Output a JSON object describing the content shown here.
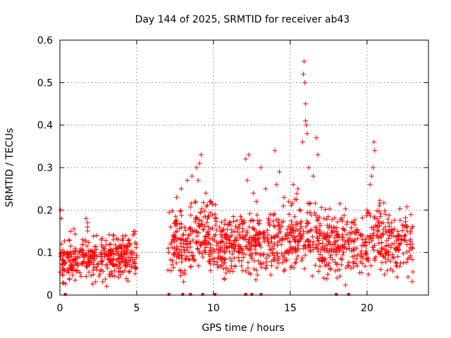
{
  "chart_data": {
    "type": "scatter",
    "title": "Day 144 of 2025, SRMTID for receiver ab43",
    "xlabel": "GPS time / hours",
    "ylabel": "SRMTID / TECUs",
    "xlim": [
      0,
      24
    ],
    "ylim": [
      0,
      0.6
    ],
    "xticks": [
      0,
      5,
      10,
      15,
      20
    ],
    "yticks": [
      0,
      0.1,
      0.2,
      0.3,
      0.4,
      0.5,
      0.6
    ],
    "xtick_labels": [
      "0",
      "5",
      "10",
      "15",
      "20"
    ],
    "ytick_labels": [
      "0",
      "0.1",
      "0.2",
      "0.3",
      "0.4",
      "0.5",
      "0.6"
    ],
    "grid": true,
    "marker": "+",
    "color": "#ff0000",
    "series": [
      {
        "name": "SRMTID",
        "segments": [
          {
            "x_start": 0.0,
            "x_end": 5.0,
            "baseline": 0.085,
            "spread": 0.035
          },
          {
            "x_start": 7.0,
            "x_end": 23.0,
            "baseline": 0.12,
            "spread": 0.045
          }
        ],
        "x": [
          0.05,
          0.1,
          0.1,
          0.6,
          0.7,
          1.0,
          1.3,
          1.7,
          1.8,
          1.8,
          2.2,
          2.4,
          2.9,
          3.3,
          3.5,
          3.8,
          4.1,
          4.3,
          4.5,
          4.8,
          4.9,
          7.2,
          7.5,
          7.6,
          7.9,
          8.3,
          8.6,
          8.9,
          9.0,
          9.1,
          9.2,
          9.5,
          9.8,
          10.1,
          10.4,
          10.7,
          11.0,
          11.3,
          11.8,
          12.1,
          12.2,
          12.3,
          12.6,
          12.8,
          13.1,
          13.4,
          13.7,
          14.0,
          14.1,
          14.3,
          14.6,
          14.9,
          15.2,
          15.5,
          15.8,
          15.85,
          15.9,
          15.95,
          16.0,
          16.0,
          16.05,
          16.1,
          16.2,
          16.5,
          16.7,
          16.8,
          17.2,
          17.6,
          18.0,
          18.4,
          18.8,
          19.2,
          19.6,
          20.0,
          20.2,
          20.3,
          20.4,
          20.45,
          20.5,
          20.8,
          21.2,
          21.6,
          22.0,
          22.4,
          22.8
        ],
        "y": [
          0.2,
          0.18,
          0.12,
          0.13,
          0.15,
          0.11,
          0.09,
          0.18,
          0.17,
          0.16,
          0.1,
          0.14,
          0.09,
          0.12,
          0.14,
          0.13,
          0.08,
          0.1,
          0.13,
          0.15,
          0.15,
          0.12,
          0.17,
          0.23,
          0.25,
          0.27,
          0.28,
          0.3,
          0.27,
          0.31,
          0.33,
          0.24,
          0.22,
          0.18,
          0.16,
          0.14,
          0.13,
          0.12,
          0.11,
          0.32,
          0.27,
          0.33,
          0.24,
          0.22,
          0.3,
          0.25,
          0.19,
          0.34,
          0.26,
          0.29,
          0.23,
          0.22,
          0.26,
          0.25,
          0.36,
          0.52,
          0.55,
          0.5,
          0.45,
          0.41,
          0.4,
          0.38,
          0.3,
          0.28,
          0.37,
          0.33,
          0.18,
          0.14,
          0.14,
          0.13,
          0.12,
          0.13,
          0.14,
          0.2,
          0.26,
          0.28,
          0.3,
          0.36,
          0.34,
          0.21,
          0.19,
          0.17,
          0.15,
          0.13,
          0.12
        ]
      }
    ],
    "gaps": [
      0.35,
      7.1,
      8.0,
      8.5,
      9.3,
      10.1,
      12.1,
      12.5,
      13.1,
      18.0,
      18.8
    ],
    "gaps_label": ""
  }
}
